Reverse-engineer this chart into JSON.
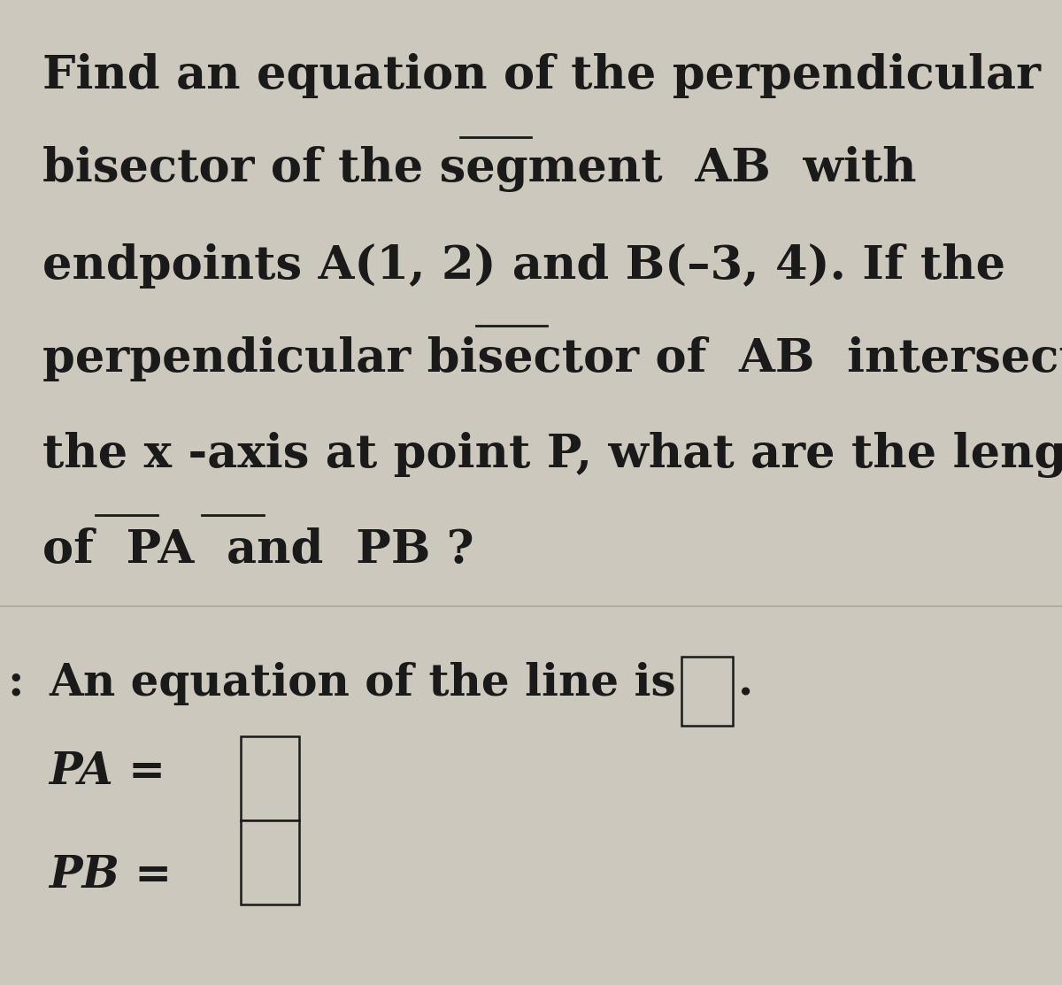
{
  "background_color": "#cdc8be",
  "text_color": "#1a1a1a",
  "fig_width": 12.0,
  "fig_height": 11.13,
  "line1": "Find an equation of the perpendicular",
  "line2": "bisector of the segment  AB  with",
  "line3": "endpoints A(1, 2) and B(–3, 4). If the",
  "line4": "perpendicular bisector of  AB  intersects",
  "line5": "the x -axis at point P, what are the lengths",
  "line6": "of  PA  and  PB ?",
  "answer_line": "An equation of the line is",
  "pa_label": "PA =",
  "pb_label": "PB =",
  "font_size_main": 38,
  "font_size_answer": 36
}
